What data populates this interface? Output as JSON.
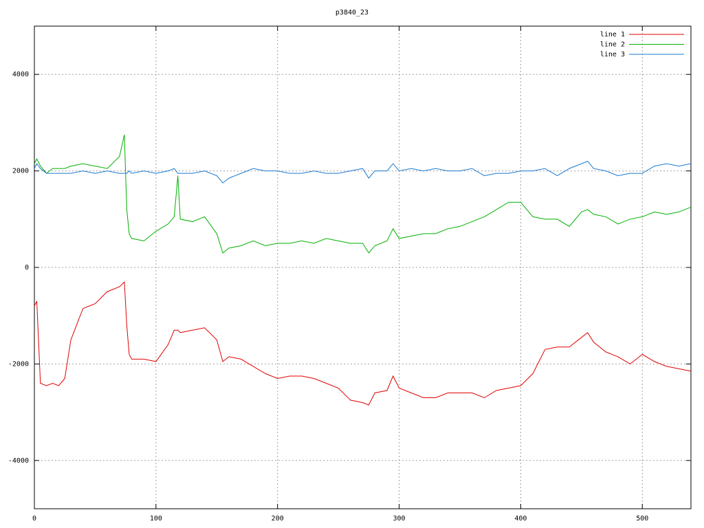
{
  "chart_data": {
    "type": "line",
    "title": "p3840_23",
    "x": [
      0,
      2,
      5,
      10,
      15,
      20,
      25,
      30,
      40,
      50,
      60,
      70,
      74,
      76,
      78,
      80,
      90,
      100,
      110,
      115,
      118,
      120,
      130,
      140,
      150,
      155,
      160,
      170,
      180,
      190,
      200,
      210,
      220,
      230,
      240,
      250,
      260,
      270,
      275,
      280,
      290,
      295,
      300,
      310,
      320,
      330,
      340,
      350,
      360,
      370,
      380,
      390,
      400,
      410,
      420,
      430,
      440,
      450,
      455,
      460,
      470,
      480,
      490,
      500,
      510,
      520,
      530,
      540
    ],
    "series": [
      {
        "name": "line 1",
        "color": "#e00000",
        "values": [
          -800,
          -700,
          -2400,
          -2450,
          -2400,
          -2450,
          -2300,
          -1500,
          -850,
          -750,
          -500,
          -400,
          -300,
          -1200,
          -1800,
          -1900,
          -1900,
          -1950,
          -1600,
          -1300,
          -1300,
          -1350,
          -1300,
          -1250,
          -1500,
          -1950,
          -1850,
          -1900,
          -2050,
          -2200,
          -2300,
          -2250,
          -2250,
          -2300,
          -2400,
          -2500,
          -2750,
          -2800,
          -2850,
          -2600,
          -2550,
          -2250,
          -2500,
          -2600,
          -2700,
          -2700,
          -2600,
          -2600,
          -2600,
          -2700,
          -2550,
          -2500,
          -2450,
          -2200,
          -1700,
          -1650,
          -1650,
          -1450,
          -1350,
          -1550,
          -1750,
          -1850,
          -2000,
          -1800,
          -1950,
          -2050,
          -2100,
          -2150
        ]
      },
      {
        "name": "line 2",
        "color": "#00b000",
        "values": [
          2150,
          2250,
          2100,
          1950,
          2050,
          2050,
          2050,
          2100,
          2150,
          2100,
          2050,
          2300,
          2750,
          1200,
          700,
          600,
          550,
          750,
          900,
          1050,
          1900,
          1000,
          950,
          1050,
          700,
          300,
          400,
          450,
          550,
          450,
          500,
          500,
          550,
          500,
          600,
          550,
          500,
          500,
          300,
          450,
          550,
          800,
          600,
          650,
          700,
          700,
          800,
          850,
          950,
          1050,
          1200,
          1350,
          1350,
          1050,
          1000,
          1000,
          850,
          1150,
          1200,
          1100,
          1050,
          900,
          1000,
          1050,
          1150,
          1100,
          1150,
          1250
        ]
      },
      {
        "name": "line 3",
        "color": "#1878d0",
        "values": [
          2050,
          2150,
          2050,
          1950,
          1950,
          1950,
          1950,
          1950,
          2000,
          1950,
          2000,
          1950,
          1950,
          1950,
          2000,
          1950,
          2000,
          1950,
          2000,
          2050,
          1950,
          1950,
          1950,
          2000,
          1900,
          1750,
          1850,
          1950,
          2050,
          2000,
          2000,
          1950,
          1950,
          2000,
          1950,
          1950,
          2000,
          2050,
          1850,
          2000,
          2000,
          2150,
          2000,
          2050,
          2000,
          2050,
          2000,
          2000,
          2050,
          1900,
          1950,
          1950,
          2000,
          2000,
          2050,
          1900,
          2050,
          2150,
          2200,
          2050,
          2000,
          1900,
          1950,
          1950,
          2100,
          2150,
          2100,
          2150
        ]
      }
    ],
    "xlim": [
      0,
      540
    ],
    "ylim": [
      -5000,
      5000
    ],
    "xticks": [
      0,
      100,
      200,
      300,
      400,
      500
    ],
    "yticks": [
      -4000,
      -2000,
      0,
      2000,
      4000
    ],
    "grid": true,
    "legend": "top-right"
  }
}
